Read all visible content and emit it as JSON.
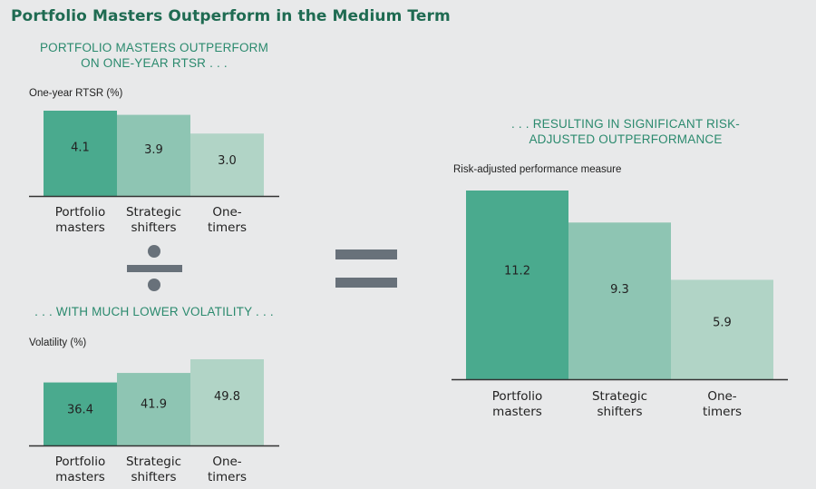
{
  "title": "Portfolio Masters Outperform in the Medium Term",
  "operators": {
    "divide": "divide-icon",
    "equals": "equals-icon"
  },
  "colors": {
    "title": "#1f6b52",
    "subhead": "#2b8a6e",
    "portfolio_masters": "#4aaa8e",
    "strategic_shifters": "#8ec5b3",
    "one_timers": "#b1d4c6",
    "operator": "#68717a",
    "background": "#e8e9ea"
  },
  "chart_data": [
    {
      "type": "bar",
      "id": "rtsr",
      "title": "PORTFOLIO MASTERS OUTPERFORM ON ONE-YEAR RTSR . . .",
      "title_lines": [
        "PORTFOLIO MASTERS OUTPERFORM",
        "ON ONE-YEAR RTSR . . ."
      ],
      "ylabel": "One-year RTSR (%)",
      "xlabel": "",
      "categories": [
        "Portfolio masters",
        "Strategic shifters",
        "One-timers"
      ],
      "category_lines": [
        [
          "Portfolio",
          "masters"
        ],
        [
          "Strategic",
          "shifters"
        ],
        [
          "One-",
          "timers"
        ]
      ],
      "values": [
        4.1,
        3.9,
        3.0
      ],
      "value_labels": [
        "4.1",
        "3.9",
        "3.0"
      ],
      "ylim": [
        0,
        4.1
      ],
      "grid": false,
      "legend": "none"
    },
    {
      "type": "bar",
      "id": "volatility",
      "title": ". . . WITH MUCH LOWER VOLATILITY . . .",
      "title_lines": [
        ". . . WITH MUCH LOWER VOLATILITY . . ."
      ],
      "ylabel": "Volatility (%)",
      "xlabel": "",
      "categories": [
        "Portfolio masters",
        "Strategic shifters",
        "One-timers"
      ],
      "category_lines": [
        [
          "Portfolio",
          "masters"
        ],
        [
          "Strategic",
          "shifters"
        ],
        [
          "One-",
          "timers"
        ]
      ],
      "values": [
        36.4,
        41.9,
        49.8
      ],
      "value_labels": [
        "36.4",
        "41.9",
        "49.8"
      ],
      "ylim": [
        0,
        49.8
      ],
      "grid": false,
      "legend": "none"
    },
    {
      "type": "bar",
      "id": "risk_adjusted",
      "title": ". . . RESULTING IN SIGNIFICANT RISK-ADJUSTED OUTPERFORMANCE",
      "title_lines": [
        ". . . RESULTING IN SIGNIFICANT RISK-",
        "ADJUSTED OUTPERFORMANCE"
      ],
      "ylabel": "Risk-adjusted performance measure",
      "xlabel": "",
      "categories": [
        "Portfolio masters",
        "Strategic shifters",
        "One-timers"
      ],
      "category_lines": [
        [
          "Portfolio",
          "masters"
        ],
        [
          "Strategic",
          "shifters"
        ],
        [
          "One-",
          "timers"
        ]
      ],
      "values": [
        11.2,
        9.3,
        5.9
      ],
      "value_labels": [
        "11.2",
        "9.3",
        "5.9"
      ],
      "ylim": [
        0,
        11.2
      ],
      "grid": false,
      "legend": "none"
    }
  ]
}
